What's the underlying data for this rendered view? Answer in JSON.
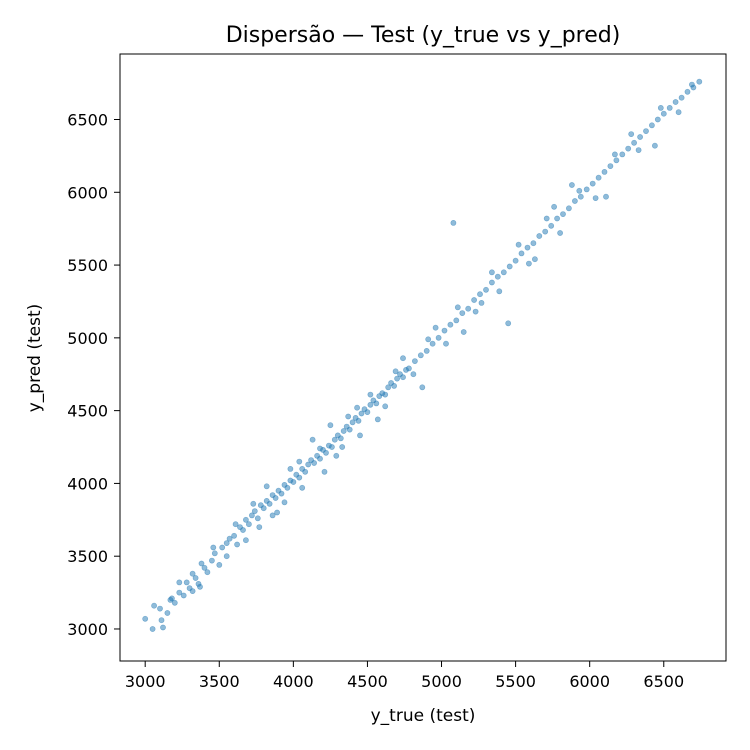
{
  "chart_data": {
    "type": "scatter",
    "title": "Dispersão — Test (y_true vs y_pred)",
    "xlabel": "y_true (test)",
    "ylabel": "y_pred (test)",
    "xlim": [
      2830,
      6920
    ],
    "ylim": [
      2780,
      6950
    ],
    "xticks": [
      3000,
      3500,
      4000,
      4500,
      5000,
      5500,
      6000,
      6500
    ],
    "yticks": [
      3000,
      3500,
      4000,
      4500,
      5000,
      5500,
      6000,
      6500
    ],
    "grid": false,
    "legend": "none",
    "point_color": "#1f77b4",
    "point_alpha": 0.5,
    "series": [
      {
        "points_note_x_y": [
          [
            3000,
            3070
          ],
          [
            3050,
            3000
          ],
          [
            3060,
            3160
          ],
          [
            3100,
            3140
          ],
          [
            3110,
            3060
          ],
          [
            3150,
            3110
          ],
          [
            3170,
            3200
          ],
          [
            3200,
            3180
          ],
          [
            3230,
            3250
          ],
          [
            3260,
            3230
          ],
          [
            3280,
            3320
          ],
          [
            3300,
            3280
          ],
          [
            3320,
            3380
          ],
          [
            3340,
            3350
          ],
          [
            3360,
            3310
          ],
          [
            3380,
            3450
          ],
          [
            3400,
            3420
          ],
          [
            3420,
            3390
          ],
          [
            3450,
            3470
          ],
          [
            3470,
            3520
          ],
          [
            3500,
            3440
          ],
          [
            3520,
            3560
          ],
          [
            3550,
            3590
          ],
          [
            3570,
            3620
          ],
          [
            3600,
            3640
          ],
          [
            3620,
            3580
          ],
          [
            3640,
            3700
          ],
          [
            3660,
            3680
          ],
          [
            3680,
            3750
          ],
          [
            3700,
            3720
          ],
          [
            3720,
            3780
          ],
          [
            3740,
            3810
          ],
          [
            3760,
            3760
          ],
          [
            3780,
            3850
          ],
          [
            3800,
            3830
          ],
          [
            3820,
            3880
          ],
          [
            3840,
            3860
          ],
          [
            3860,
            3920
          ],
          [
            3880,
            3900
          ],
          [
            3900,
            3950
          ],
          [
            3920,
            3930
          ],
          [
            3940,
            3990
          ],
          [
            3960,
            3970
          ],
          [
            3980,
            4020
          ],
          [
            4000,
            4010
          ],
          [
            4020,
            4060
          ],
          [
            4040,
            4040
          ],
          [
            4060,
            4100
          ],
          [
            4080,
            4080
          ],
          [
            4100,
            4130
          ],
          [
            4120,
            4160
          ],
          [
            4140,
            4140
          ],
          [
            4160,
            4190
          ],
          [
            4180,
            4170
          ],
          [
            4200,
            4230
          ],
          [
            4220,
            4210
          ],
          [
            4240,
            4260
          ],
          [
            4260,
            4250
          ],
          [
            4280,
            4300
          ],
          [
            4300,
            4330
          ],
          [
            4320,
            4310
          ],
          [
            4340,
            4360
          ],
          [
            4360,
            4390
          ],
          [
            4380,
            4370
          ],
          [
            4400,
            4420
          ],
          [
            4420,
            4450
          ],
          [
            4440,
            4430
          ],
          [
            4460,
            4480
          ],
          [
            4480,
            4510
          ],
          [
            4500,
            4490
          ],
          [
            4520,
            4540
          ],
          [
            4540,
            4570
          ],
          [
            4560,
            4550
          ],
          [
            4580,
            4600
          ],
          [
            4600,
            4620
          ],
          [
            4620,
            4610
          ],
          [
            4640,
            4660
          ],
          [
            4660,
            4690
          ],
          [
            4680,
            4670
          ],
          [
            4700,
            4720
          ],
          [
            4720,
            4750
          ],
          [
            4740,
            4730
          ],
          [
            4760,
            4780
          ],
          [
            4780,
            4790
          ],
          [
            4820,
            4840
          ],
          [
            4860,
            4880
          ],
          [
            4900,
            4910
          ],
          [
            4940,
            4960
          ],
          [
            4980,
            5000
          ],
          [
            5020,
            5050
          ],
          [
            5060,
            5090
          ],
          [
            5100,
            5120
          ],
          [
            5140,
            5170
          ],
          [
            5180,
            5200
          ],
          [
            5220,
            5260
          ],
          [
            5260,
            5300
          ],
          [
            5300,
            5330
          ],
          [
            5340,
            5380
          ],
          [
            5380,
            5420
          ],
          [
            5420,
            5450
          ],
          [
            5460,
            5490
          ],
          [
            5500,
            5530
          ],
          [
            5540,
            5580
          ],
          [
            5580,
            5620
          ],
          [
            5620,
            5650
          ],
          [
            5660,
            5700
          ],
          [
            5700,
            5730
          ],
          [
            5740,
            5770
          ],
          [
            5780,
            5820
          ],
          [
            5820,
            5850
          ],
          [
            5860,
            5890
          ],
          [
            5900,
            5940
          ],
          [
            5940,
            5970
          ],
          [
            5980,
            6020
          ],
          [
            6020,
            6060
          ],
          [
            6060,
            6100
          ],
          [
            6100,
            6140
          ],
          [
            6140,
            6180
          ],
          [
            6180,
            6220
          ],
          [
            6220,
            6260
          ],
          [
            6260,
            6300
          ],
          [
            6300,
            6340
          ],
          [
            6340,
            6380
          ],
          [
            6380,
            6420
          ],
          [
            6420,
            6460
          ],
          [
            6460,
            6500
          ],
          [
            6500,
            6540
          ],
          [
            6540,
            6580
          ],
          [
            6580,
            6620
          ],
          [
            6620,
            6650
          ],
          [
            6660,
            6690
          ],
          [
            6700,
            6720
          ],
          [
            6740,
            6760
          ],
          [
            5080,
            5790
          ],
          [
            5450,
            5100
          ],
          [
            4870,
            4660
          ],
          [
            4210,
            4080
          ],
          [
            3610,
            3720
          ],
          [
            3890,
            3800
          ],
          [
            4130,
            4300
          ],
          [
            4330,
            4250
          ],
          [
            4430,
            4520
          ],
          [
            4040,
            4150
          ],
          [
            3820,
            3980
          ],
          [
            4570,
            4440
          ],
          [
            4740,
            4860
          ],
          [
            5150,
            5040
          ],
          [
            5340,
            5450
          ],
          [
            5630,
            5540
          ],
          [
            5880,
            6050
          ],
          [
            6110,
            5970
          ],
          [
            6280,
            6400
          ],
          [
            6440,
            6320
          ],
          [
            5760,
            5900
          ],
          [
            5230,
            5180
          ],
          [
            4960,
            5070
          ],
          [
            4450,
            4330
          ],
          [
            4250,
            4400
          ],
          [
            3940,
            3870
          ],
          [
            3730,
            3860
          ],
          [
            3550,
            3500
          ],
          [
            3370,
            3290
          ],
          [
            3230,
            3320
          ],
          [
            3120,
            3010
          ],
          [
            3180,
            3210
          ],
          [
            3320,
            3260
          ],
          [
            3460,
            3560
          ],
          [
            3680,
            3610
          ],
          [
            3770,
            3700
          ],
          [
            3860,
            3780
          ],
          [
            3980,
            4100
          ],
          [
            4060,
            3970
          ],
          [
            4180,
            4240
          ],
          [
            4290,
            4190
          ],
          [
            4370,
            4460
          ],
          [
            4520,
            4610
          ],
          [
            4620,
            4530
          ],
          [
            4690,
            4770
          ],
          [
            4810,
            4750
          ],
          [
            4910,
            4990
          ],
          [
            5030,
            4960
          ],
          [
            5110,
            5210
          ],
          [
            5270,
            5240
          ],
          [
            5390,
            5320
          ],
          [
            5520,
            5640
          ],
          [
            5590,
            5510
          ],
          [
            5710,
            5820
          ],
          [
            5800,
            5720
          ],
          [
            5930,
            6010
          ],
          [
            6040,
            5960
          ],
          [
            6170,
            6260
          ],
          [
            6330,
            6290
          ],
          [
            6480,
            6580
          ],
          [
            6600,
            6550
          ],
          [
            6690,
            6740
          ]
        ]
      }
    ]
  }
}
